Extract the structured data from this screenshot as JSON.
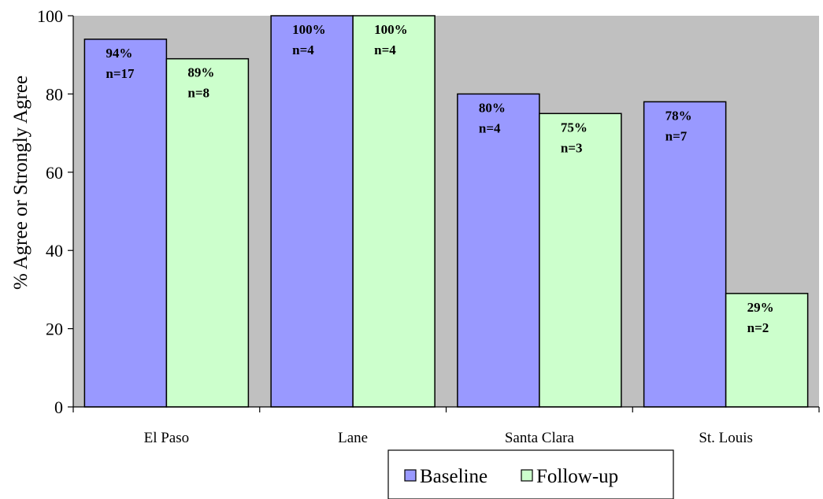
{
  "chart_data": {
    "type": "bar",
    "title": "",
    "xlabel": "",
    "ylabel": "% Agree or Strongly Agree",
    "ylim": [
      0,
      100
    ],
    "yticks": [
      0,
      20,
      40,
      60,
      80,
      100
    ],
    "grid": false,
    "legend_position": "bottom-right",
    "categories": [
      "El Paso",
      "Lane",
      "Santa Clara",
      "St. Louis"
    ],
    "series": [
      {
        "name": "Baseline",
        "color": "#9999ff",
        "values": [
          94,
          100,
          80,
          78
        ],
        "labels": [
          [
            "94%",
            "n=17"
          ],
          [
            "100%",
            "n=4"
          ],
          [
            "80%",
            "n=4"
          ],
          [
            "78%",
            "n=7"
          ]
        ]
      },
      {
        "name": "Follow-up",
        "color": "#ccffcc",
        "values": [
          89,
          100,
          75,
          29
        ],
        "labels": [
          [
            "89%",
            "n=8"
          ],
          [
            "100%",
            "n=4"
          ],
          [
            "75%",
            "n=3"
          ],
          [
            "29%",
            "n=2"
          ]
        ]
      }
    ],
    "plot_background": "#c0c0c0"
  }
}
